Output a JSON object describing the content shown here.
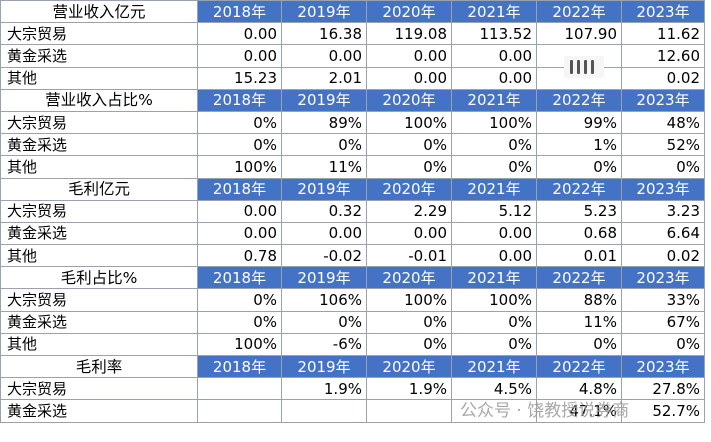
{
  "years": [
    "2018年",
    "2019年",
    "2020年",
    "2021年",
    "2022年",
    "2023年"
  ],
  "sections": [
    {
      "title": "营业收入亿元",
      "rows": [
        {
          "label": "大宗贸易",
          "values": [
            "0.00",
            "16.38",
            "119.08",
            "113.52",
            "107.90",
            "11.62"
          ]
        },
        {
          "label": "黄金采选",
          "values": [
            "0.00",
            "0.00",
            "0.00",
            "0.00",
            "",
            "12.60"
          ]
        },
        {
          "label": "其他",
          "values": [
            "15.23",
            "2.01",
            "0.00",
            "0.00",
            "",
            "0.02"
          ]
        }
      ]
    },
    {
      "title": "营业收入占比%",
      "rows": [
        {
          "label": "大宗贸易",
          "values": [
            "0%",
            "89%",
            "100%",
            "100%",
            "99%",
            "48%"
          ]
        },
        {
          "label": "黄金采选",
          "values": [
            "0%",
            "0%",
            "0%",
            "0%",
            "1%",
            "52%"
          ]
        },
        {
          "label": "其他",
          "values": [
            "100%",
            "11%",
            "0%",
            "0%",
            "0%",
            "0%"
          ]
        }
      ]
    },
    {
      "title": "毛利亿元",
      "rows": [
        {
          "label": "大宗贸易",
          "values": [
            "0.00",
            "0.32",
            "2.29",
            "5.12",
            "5.23",
            "3.23"
          ]
        },
        {
          "label": "黄金采选",
          "values": [
            "0.00",
            "0.00",
            "0.00",
            "0.00",
            "0.68",
            "6.64"
          ]
        },
        {
          "label": "其他",
          "values": [
            "0.78",
            "-0.02",
            "-0.01",
            "0.00",
            "0.01",
            "0.02"
          ]
        }
      ]
    },
    {
      "title": "毛利占比%",
      "rows": [
        {
          "label": "大宗贸易",
          "values": [
            "0%",
            "106%",
            "100%",
            "100%",
            "88%",
            "33%"
          ]
        },
        {
          "label": "黄金采选",
          "values": [
            "0%",
            "0%",
            "0%",
            "0%",
            "11%",
            "67%"
          ]
        },
        {
          "label": "其他",
          "values": [
            "100%",
            "-6%",
            "0%",
            "0%",
            "0%",
            "0%"
          ]
        }
      ]
    },
    {
      "title": "毛利率",
      "rows": [
        {
          "label": "大宗贸易",
          "values": [
            "",
            "1.9%",
            "1.9%",
            "4.5%",
            "4.8%",
            "27.8%"
          ]
        },
        {
          "label": "黄金采选",
          "values": [
            "",
            "",
            "",
            "",
            "47.1%",
            "52.7%"
          ]
        }
      ]
    }
  ],
  "watermark": "公众号 · 饶教授说券商",
  "colors": {
    "header_bg": "#4472c4",
    "header_text": "#ffffff",
    "grid": "#9aa3ad"
  }
}
